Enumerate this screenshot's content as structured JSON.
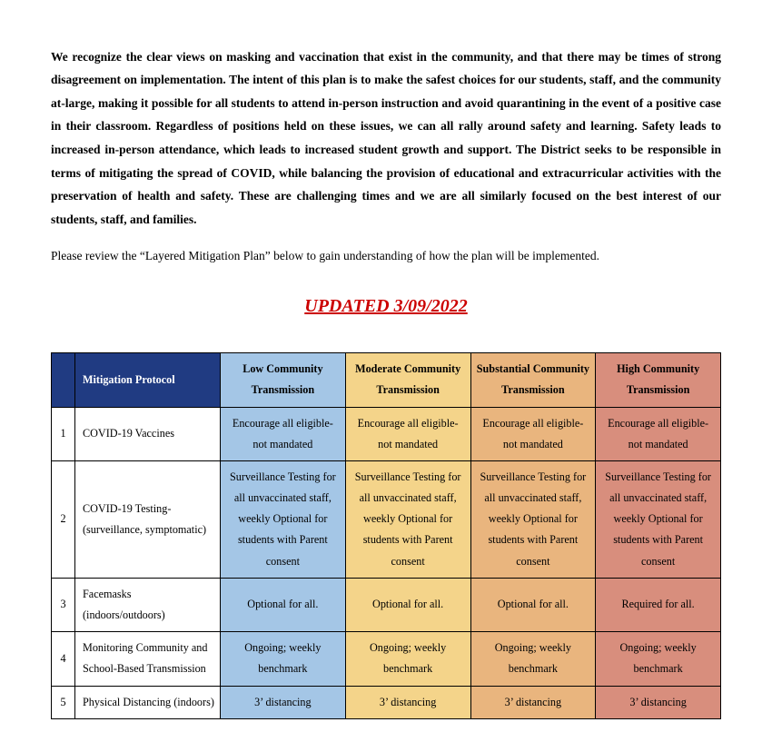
{
  "intro": "We recognize the clear views on masking and vaccination that exist in the community, and that there may be times of strong disagreement on implementation. The intent of this plan is to make the safest choices for our students, staff, and the community at-large, making it possible for all students to attend in-person instruction and avoid quarantining in the event of a positive case in their classroom. Regardless of positions held on these issues, we can all rally around safety and learning. Safety leads to increased in-person attendance, which leads to increased student growth and support. The District seeks to be responsible in terms of mitigating the spread of COVID, while balancing the provision of educational and extracurricular activities with the preservation of health and safety. These are challenging times and we are all similarly focused on the best interest of our students, staff, and families.",
  "review": "Please review the “Layered Mitigation Plan” below to gain understanding of how the plan will be implemented.",
  "updated": "UPDATED  3/09/2022",
  "table": {
    "headers": {
      "protocol": "Mitigation Protocol",
      "low": "Low Community Transmission",
      "moderate": "Moderate Community Transmission",
      "substantial": "Substantial Community Transmission",
      "high": "High Community Transmission"
    },
    "rows": [
      {
        "n": "1",
        "protocol": "COVID-19 Vaccines",
        "low": "Encourage all eligible-not mandated",
        "mod": "Encourage all eligible-not mandated",
        "sub": "Encourage all eligible-not mandated",
        "high": "Encourage all eligible-not mandated"
      },
      {
        "n": "2",
        "protocol": "COVID-19 Testing- (surveillance, symptomatic)",
        "low": "Surveillance Testing for all unvaccinated staff, weekly Optional for students with Parent consent",
        "mod": "Surveillance Testing for all unvaccinated staff, weekly Optional for students with Parent consent",
        "sub": "Surveillance Testing for all unvaccinated staff, weekly Optional for students with Parent consent",
        "high": "Surveillance Testing for all unvaccinated staff, weekly Optional for students with Parent consent"
      },
      {
        "n": "3",
        "protocol": "Facemasks (indoors/outdoors)",
        "low": "Optional for all.",
        "mod": "Optional for all.",
        "sub": "Optional for all.",
        "high": "Required for all."
      },
      {
        "n": "4",
        "protocol": "Monitoring Community and School-Based Transmission",
        "low": "Ongoing; weekly benchmark",
        "mod": "Ongoing; weekly benchmark",
        "sub": "Ongoing; weekly benchmark",
        "high": "Ongoing; weekly benchmark"
      },
      {
        "n": "5",
        "protocol": "Physical Distancing (indoors)",
        "low": "3’ distancing",
        "mod": "3’ distancing",
        "sub": "3’ distancing",
        "high": "3’ distancing"
      }
    ]
  }
}
